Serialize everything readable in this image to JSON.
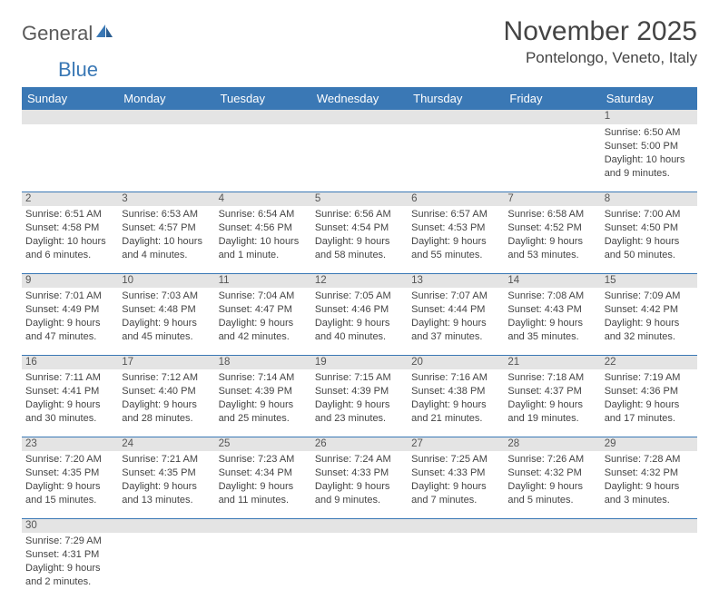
{
  "logo": {
    "part1": "General",
    "part2": "Blue"
  },
  "title": "November 2025",
  "location": "Pontelongo, Veneto, Italy",
  "colors": {
    "header_bg": "#3a78b5",
    "header_text": "#ffffff",
    "daynum_bg": "#e4e4e4",
    "rule": "#3a78b5",
    "text": "#444444"
  },
  "weekdays": [
    "Sunday",
    "Monday",
    "Tuesday",
    "Wednesday",
    "Thursday",
    "Friday",
    "Saturday"
  ],
  "weeks": [
    [
      null,
      null,
      null,
      null,
      null,
      null,
      {
        "d": "1",
        "sr": "Sunrise: 6:50 AM",
        "ss": "Sunset: 5:00 PM",
        "dl1": "Daylight: 10 hours",
        "dl2": "and 9 minutes."
      }
    ],
    [
      {
        "d": "2",
        "sr": "Sunrise: 6:51 AM",
        "ss": "Sunset: 4:58 PM",
        "dl1": "Daylight: 10 hours",
        "dl2": "and 6 minutes."
      },
      {
        "d": "3",
        "sr": "Sunrise: 6:53 AM",
        "ss": "Sunset: 4:57 PM",
        "dl1": "Daylight: 10 hours",
        "dl2": "and 4 minutes."
      },
      {
        "d": "4",
        "sr": "Sunrise: 6:54 AM",
        "ss": "Sunset: 4:56 PM",
        "dl1": "Daylight: 10 hours",
        "dl2": "and 1 minute."
      },
      {
        "d": "5",
        "sr": "Sunrise: 6:56 AM",
        "ss": "Sunset: 4:54 PM",
        "dl1": "Daylight: 9 hours",
        "dl2": "and 58 minutes."
      },
      {
        "d": "6",
        "sr": "Sunrise: 6:57 AM",
        "ss": "Sunset: 4:53 PM",
        "dl1": "Daylight: 9 hours",
        "dl2": "and 55 minutes."
      },
      {
        "d": "7",
        "sr": "Sunrise: 6:58 AM",
        "ss": "Sunset: 4:52 PM",
        "dl1": "Daylight: 9 hours",
        "dl2": "and 53 minutes."
      },
      {
        "d": "8",
        "sr": "Sunrise: 7:00 AM",
        "ss": "Sunset: 4:50 PM",
        "dl1": "Daylight: 9 hours",
        "dl2": "and 50 minutes."
      }
    ],
    [
      {
        "d": "9",
        "sr": "Sunrise: 7:01 AM",
        "ss": "Sunset: 4:49 PM",
        "dl1": "Daylight: 9 hours",
        "dl2": "and 47 minutes."
      },
      {
        "d": "10",
        "sr": "Sunrise: 7:03 AM",
        "ss": "Sunset: 4:48 PM",
        "dl1": "Daylight: 9 hours",
        "dl2": "and 45 minutes."
      },
      {
        "d": "11",
        "sr": "Sunrise: 7:04 AM",
        "ss": "Sunset: 4:47 PM",
        "dl1": "Daylight: 9 hours",
        "dl2": "and 42 minutes."
      },
      {
        "d": "12",
        "sr": "Sunrise: 7:05 AM",
        "ss": "Sunset: 4:46 PM",
        "dl1": "Daylight: 9 hours",
        "dl2": "and 40 minutes."
      },
      {
        "d": "13",
        "sr": "Sunrise: 7:07 AM",
        "ss": "Sunset: 4:44 PM",
        "dl1": "Daylight: 9 hours",
        "dl2": "and 37 minutes."
      },
      {
        "d": "14",
        "sr": "Sunrise: 7:08 AM",
        "ss": "Sunset: 4:43 PM",
        "dl1": "Daylight: 9 hours",
        "dl2": "and 35 minutes."
      },
      {
        "d": "15",
        "sr": "Sunrise: 7:09 AM",
        "ss": "Sunset: 4:42 PM",
        "dl1": "Daylight: 9 hours",
        "dl2": "and 32 minutes."
      }
    ],
    [
      {
        "d": "16",
        "sr": "Sunrise: 7:11 AM",
        "ss": "Sunset: 4:41 PM",
        "dl1": "Daylight: 9 hours",
        "dl2": "and 30 minutes."
      },
      {
        "d": "17",
        "sr": "Sunrise: 7:12 AM",
        "ss": "Sunset: 4:40 PM",
        "dl1": "Daylight: 9 hours",
        "dl2": "and 28 minutes."
      },
      {
        "d": "18",
        "sr": "Sunrise: 7:14 AM",
        "ss": "Sunset: 4:39 PM",
        "dl1": "Daylight: 9 hours",
        "dl2": "and 25 minutes."
      },
      {
        "d": "19",
        "sr": "Sunrise: 7:15 AM",
        "ss": "Sunset: 4:39 PM",
        "dl1": "Daylight: 9 hours",
        "dl2": "and 23 minutes."
      },
      {
        "d": "20",
        "sr": "Sunrise: 7:16 AM",
        "ss": "Sunset: 4:38 PM",
        "dl1": "Daylight: 9 hours",
        "dl2": "and 21 minutes."
      },
      {
        "d": "21",
        "sr": "Sunrise: 7:18 AM",
        "ss": "Sunset: 4:37 PM",
        "dl1": "Daylight: 9 hours",
        "dl2": "and 19 minutes."
      },
      {
        "d": "22",
        "sr": "Sunrise: 7:19 AM",
        "ss": "Sunset: 4:36 PM",
        "dl1": "Daylight: 9 hours",
        "dl2": "and 17 minutes."
      }
    ],
    [
      {
        "d": "23",
        "sr": "Sunrise: 7:20 AM",
        "ss": "Sunset: 4:35 PM",
        "dl1": "Daylight: 9 hours",
        "dl2": "and 15 minutes."
      },
      {
        "d": "24",
        "sr": "Sunrise: 7:21 AM",
        "ss": "Sunset: 4:35 PM",
        "dl1": "Daylight: 9 hours",
        "dl2": "and 13 minutes."
      },
      {
        "d": "25",
        "sr": "Sunrise: 7:23 AM",
        "ss": "Sunset: 4:34 PM",
        "dl1": "Daylight: 9 hours",
        "dl2": "and 11 minutes."
      },
      {
        "d": "26",
        "sr": "Sunrise: 7:24 AM",
        "ss": "Sunset: 4:33 PM",
        "dl1": "Daylight: 9 hours",
        "dl2": "and 9 minutes."
      },
      {
        "d": "27",
        "sr": "Sunrise: 7:25 AM",
        "ss": "Sunset: 4:33 PM",
        "dl1": "Daylight: 9 hours",
        "dl2": "and 7 minutes."
      },
      {
        "d": "28",
        "sr": "Sunrise: 7:26 AM",
        "ss": "Sunset: 4:32 PM",
        "dl1": "Daylight: 9 hours",
        "dl2": "and 5 minutes."
      },
      {
        "d": "29",
        "sr": "Sunrise: 7:28 AM",
        "ss": "Sunset: 4:32 PM",
        "dl1": "Daylight: 9 hours",
        "dl2": "and 3 minutes."
      }
    ],
    [
      {
        "d": "30",
        "sr": "Sunrise: 7:29 AM",
        "ss": "Sunset: 4:31 PM",
        "dl1": "Daylight: 9 hours",
        "dl2": "and 2 minutes."
      },
      null,
      null,
      null,
      null,
      null,
      null
    ]
  ]
}
